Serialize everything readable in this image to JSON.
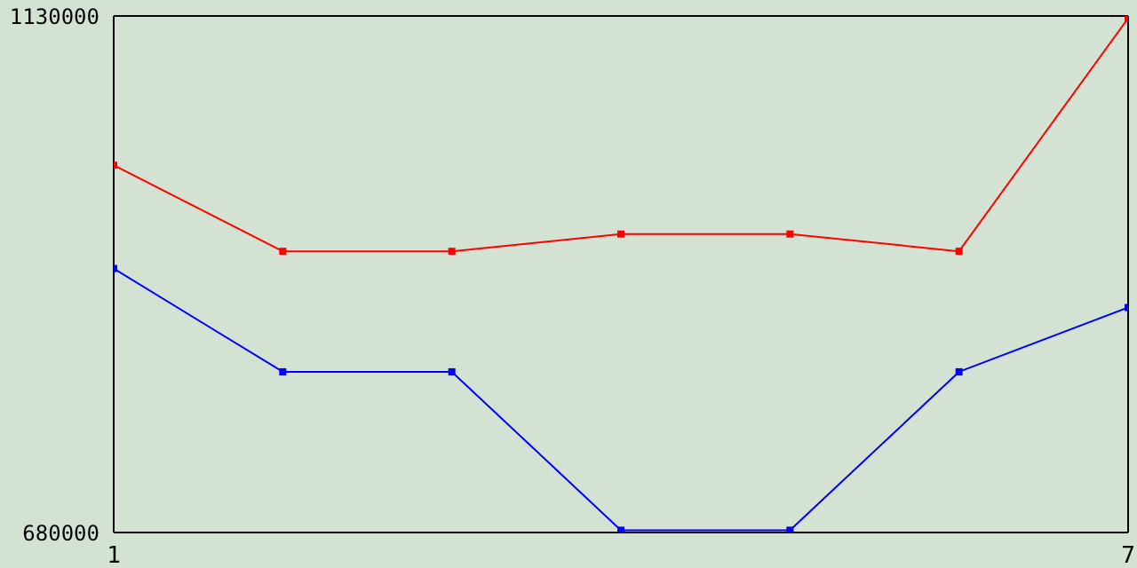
{
  "chart_data": {
    "type": "line",
    "x": [
      1,
      2,
      3,
      4,
      5,
      6,
      7
    ],
    "xlim": [
      1,
      7
    ],
    "xticks": [
      1,
      7
    ],
    "ylim": [
      680000,
      1130000
    ],
    "yticks": [
      680000,
      1130000
    ],
    "marker": "square",
    "series": [
      {
        "color": "#ff0000",
        "values": [
          1000000,
          925000,
          925000,
          940000,
          940000,
          925000,
          1128000
        ]
      },
      {
        "color": "#0000ff",
        "values": [
          910000,
          820000,
          820000,
          682000,
          682000,
          820000,
          876000
        ]
      }
    ]
  }
}
